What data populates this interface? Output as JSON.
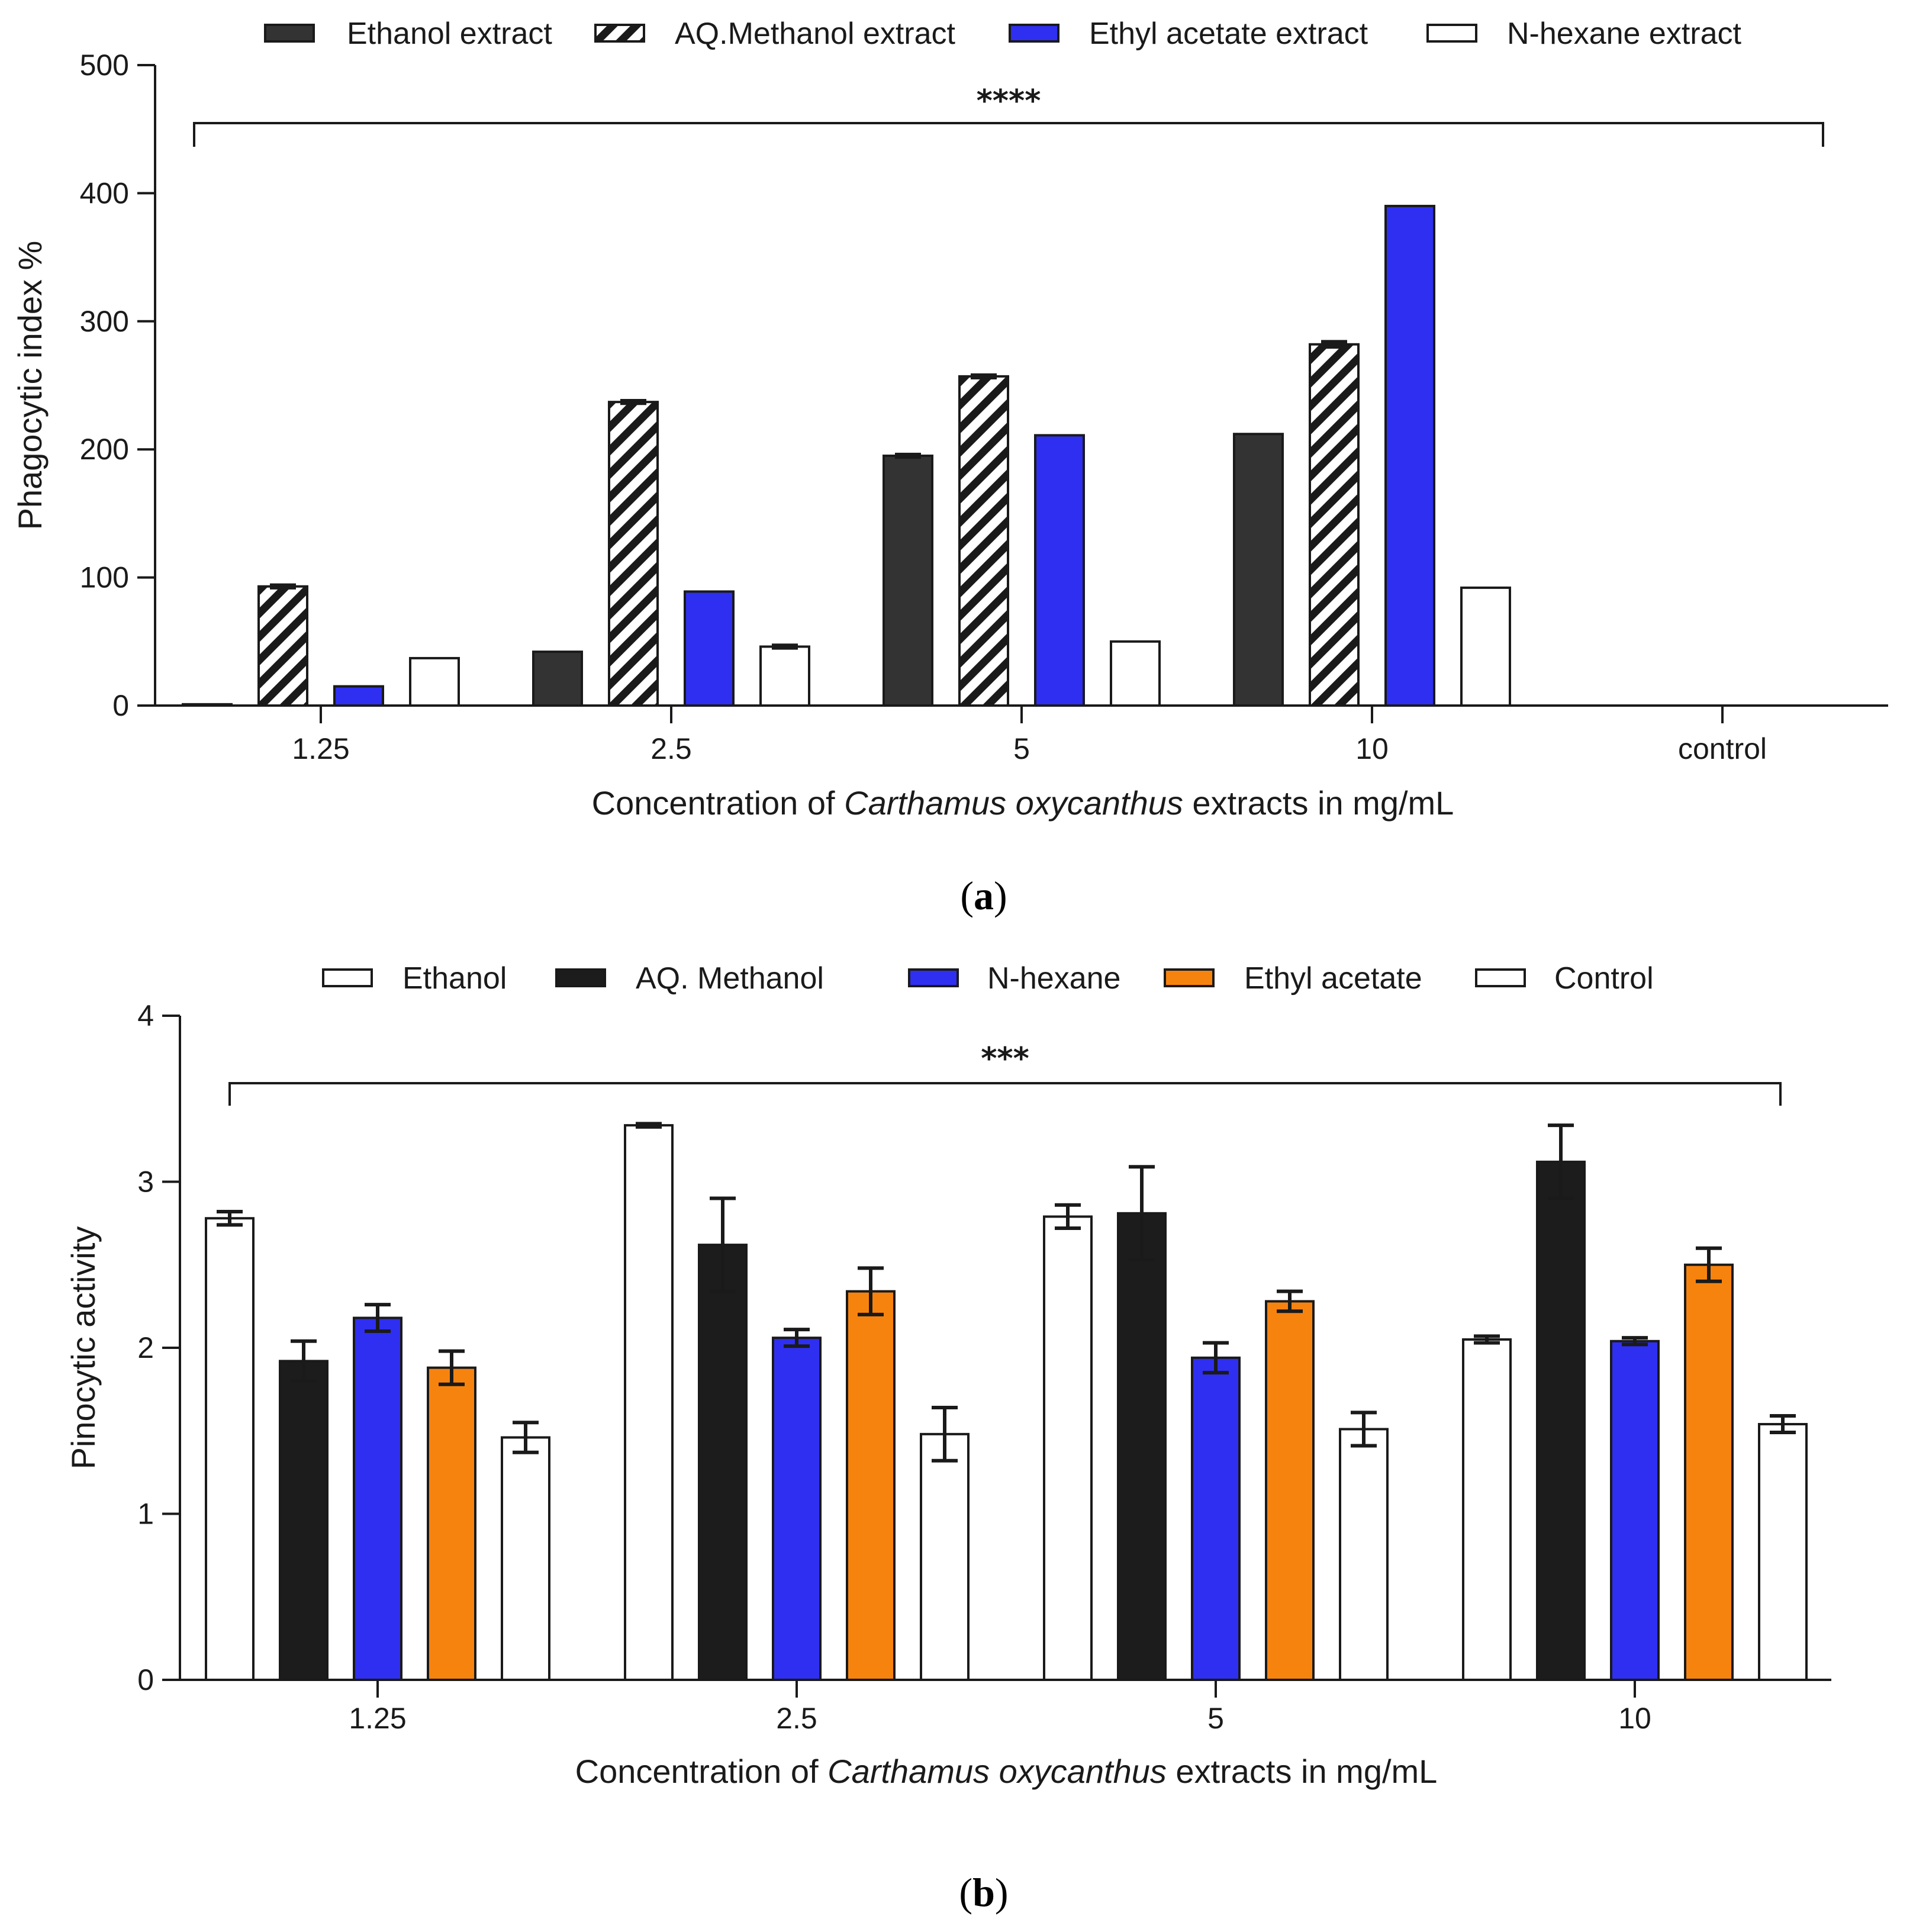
{
  "colors": {
    "dark": "#333333",
    "black": "#1c1c1c",
    "blue": "#2f2ff2",
    "orange": "#f7830f",
    "white": "#ffffff",
    "hatch": "#1a1a1a"
  },
  "chart_data": [
    {
      "panel": "a",
      "type": "bar",
      "panel_label_parts": [
        "(",
        "a",
        ")"
      ],
      "xlabel_parts": [
        "Concentration of ",
        "Carthamus oxycanthus",
        " extracts in mg/mL"
      ],
      "ylabel": "Phagocytic index %",
      "ylim": [
        0,
        500
      ],
      "yticks": [
        0,
        100,
        200,
        300,
        400,
        500
      ],
      "categories": [
        "1.25",
        "2.5",
        "5",
        "10",
        "control"
      ],
      "legend_position": "top",
      "significance": {
        "label": "****",
        "from_category": 0,
        "to_category": 4
      },
      "series": [
        {
          "name": "Ethanol extract",
          "fill": "dark",
          "values": [
            1,
            42,
            195,
            212,
            null
          ],
          "errors": [
            0,
            0,
            1,
            0,
            null
          ]
        },
        {
          "name": "AQ.Methanol extract",
          "fill": "hatch",
          "values": [
            93,
            237,
            257,
            282,
            null
          ],
          "errors": [
            1,
            1,
            1,
            2,
            null
          ]
        },
        {
          "name": "Ethyl acetate extract",
          "fill": "blue",
          "values": [
            15,
            89,
            211,
            390,
            null
          ],
          "errors": [
            0,
            0,
            0,
            0,
            null
          ]
        },
        {
          "name": "N-hexane extract",
          "fill": "white",
          "values": [
            37,
            46,
            50,
            92,
            null
          ],
          "errors": [
            0,
            1,
            0,
            0,
            null
          ]
        }
      ]
    },
    {
      "panel": "b",
      "type": "bar",
      "panel_label_parts": [
        "(",
        "b",
        ")"
      ],
      "xlabel_parts": [
        "Concentration of ",
        "Carthamus oxycanthus",
        " extracts in mg/mL"
      ],
      "ylabel": "Pinocytic activity",
      "ylim": [
        0,
        4
      ],
      "yticks": [
        0,
        1,
        2,
        3,
        4
      ],
      "categories": [
        "1.25",
        "2.5",
        "5",
        "10"
      ],
      "legend_position": "top",
      "significance": {
        "label": "***",
        "from_category": 0,
        "to_category": 3
      },
      "series": [
        {
          "name": "Ethanol",
          "fill": "white",
          "values": [
            2.78,
            3.34,
            2.79,
            2.05
          ],
          "errors": [
            0.04,
            0.01,
            0.07,
            0.02
          ]
        },
        {
          "name": "AQ. Methanol",
          "fill": "black",
          "values": [
            1.92,
            2.62,
            2.81,
            3.12
          ],
          "errors": [
            0.12,
            0.28,
            0.28,
            0.22
          ]
        },
        {
          "name": "N-hexane",
          "fill": "blue",
          "values": [
            2.18,
            2.06,
            1.94,
            2.04
          ],
          "errors": [
            0.08,
            0.05,
            0.09,
            0.02
          ]
        },
        {
          "name": "Ethyl acetate",
          "fill": "orange",
          "values": [
            1.88,
            2.34,
            2.28,
            2.5
          ],
          "errors": [
            0.1,
            0.14,
            0.06,
            0.1
          ]
        },
        {
          "name": "Control",
          "fill": "white",
          "values": [
            1.46,
            1.48,
            1.51,
            1.54
          ],
          "errors": [
            0.09,
            0.16,
            0.1,
            0.05
          ]
        }
      ]
    }
  ]
}
